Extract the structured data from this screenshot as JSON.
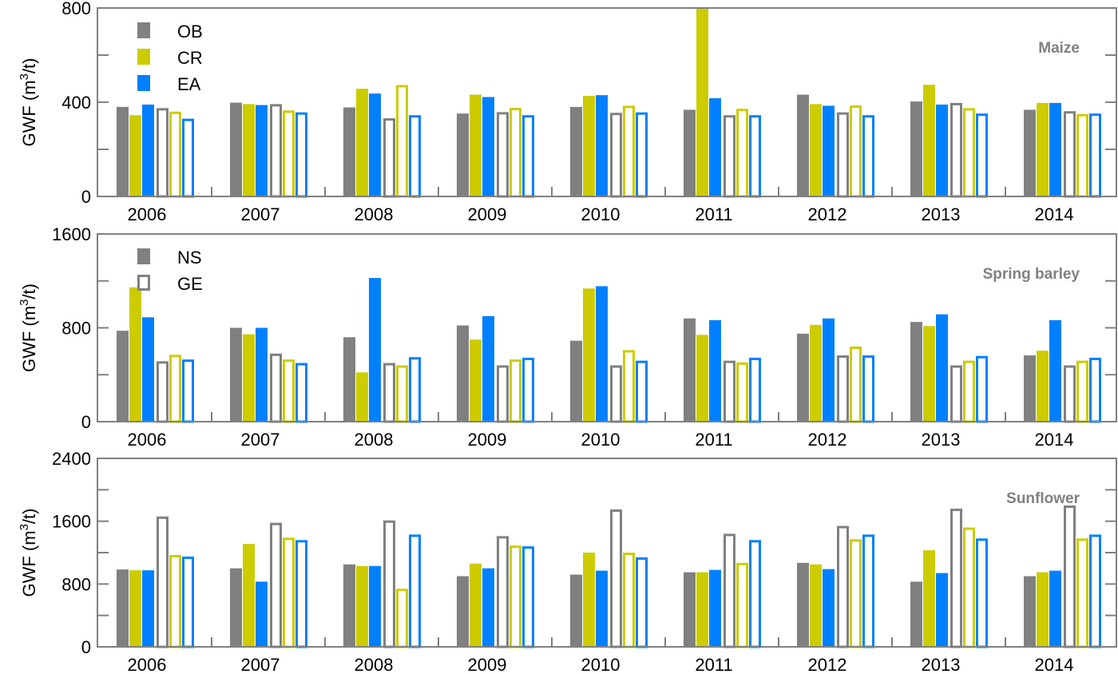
{
  "colors": {
    "OB": "#808080",
    "CR": "#cccc00",
    "EA": "#0080ff",
    "axis": "#808080"
  },
  "chart_data": [
    {
      "type": "bar",
      "title": "Maize",
      "ylabel_main": "GWF (m",
      "ylabel_sup": "3",
      "ylabel_end": "/t)",
      "ylim": [
        0,
        800
      ],
      "yticks": [
        "0",
        "400",
        "800"
      ],
      "categories": [
        "2006",
        "2007",
        "2008",
        "2009",
        "2010",
        "2011",
        "2012",
        "2013",
        "2014"
      ],
      "legend": [
        {
          "label": "OB",
          "style": "filled",
          "color": "OB"
        },
        {
          "label": "CR",
          "style": "filled",
          "color": "CR"
        },
        {
          "label": "EA",
          "style": "filled",
          "color": "EA"
        }
      ],
      "series": [
        {
          "name": "NS-OB",
          "style": "filled",
          "color": "OB",
          "values": [
            380,
            398,
            378,
            352,
            380,
            368,
            432,
            403,
            368
          ]
        },
        {
          "name": "NS-CR",
          "style": "filled",
          "color": "CR",
          "values": [
            345,
            392,
            457,
            432,
            427,
            800,
            392,
            474,
            397
          ]
        },
        {
          "name": "NS-EA",
          "style": "filled",
          "color": "EA",
          "values": [
            390,
            388,
            437,
            422,
            430,
            417,
            385,
            390,
            397
          ]
        },
        {
          "name": "GE-OB",
          "style": "hollow",
          "color": "OB",
          "values": [
            375,
            392,
            332,
            358,
            355,
            345,
            357,
            397,
            362
          ]
        },
        {
          "name": "GE-CR",
          "style": "hollow",
          "color": "CR",
          "values": [
            360,
            365,
            473,
            376,
            385,
            372,
            386,
            375,
            350
          ]
        },
        {
          "name": "GE-EA",
          "style": "hollow",
          "color": "EA",
          "values": [
            330,
            357,
            345,
            345,
            357,
            345,
            345,
            352,
            352
          ]
        }
      ]
    },
    {
      "type": "bar",
      "title": "Spring barley",
      "ylabel_main": "GWF (m",
      "ylabel_sup": "3",
      "ylabel_end": "/t)",
      "ylim": [
        0,
        1600
      ],
      "yticks": [
        "0",
        "800",
        "1600"
      ],
      "categories": [
        "2006",
        "2007",
        "2008",
        "2009",
        "2010",
        "2011",
        "2012",
        "2013",
        "2014"
      ],
      "legend": [
        {
          "label": "NS",
          "style": "filled",
          "color": "OB"
        },
        {
          "label": "GE",
          "style": "hollow",
          "color": "OB"
        }
      ],
      "series": [
        {
          "name": "NS-OB",
          "style": "filled",
          "color": "OB",
          "values": [
            775,
            800,
            720,
            820,
            690,
            880,
            750,
            850,
            565
          ]
        },
        {
          "name": "NS-CR",
          "style": "filled",
          "color": "CR",
          "values": [
            1145,
            745,
            420,
            700,
            1135,
            740,
            825,
            815,
            605
          ]
        },
        {
          "name": "NS-EA",
          "style": "filled",
          "color": "EA",
          "values": [
            890,
            800,
            1225,
            900,
            1155,
            865,
            880,
            915,
            865
          ]
        },
        {
          "name": "GE-OB",
          "style": "hollow",
          "color": "OB",
          "values": [
            515,
            580,
            500,
            480,
            480,
            520,
            565,
            480,
            480
          ]
        },
        {
          "name": "GE-CR",
          "style": "hollow",
          "color": "CR",
          "values": [
            570,
            530,
            480,
            530,
            610,
            505,
            640,
            520,
            520
          ]
        },
        {
          "name": "GE-EA",
          "style": "hollow",
          "color": "EA",
          "values": [
            530,
            500,
            550,
            545,
            520,
            545,
            565,
            560,
            545
          ]
        }
      ]
    },
    {
      "type": "bar",
      "title": "Sunflower",
      "ylabel_main": "GWF (m",
      "ylabel_sup": "3",
      "ylabel_end": "/t)",
      "ylim": [
        0,
        2400
      ],
      "yticks": [
        "0",
        "800",
        "1600",
        "2400"
      ],
      "categories": [
        "2006",
        "2007",
        "2008",
        "2009",
        "2010",
        "2011",
        "2012",
        "2013",
        "2014"
      ],
      "legend": [],
      "series": [
        {
          "name": "NS-OB",
          "style": "filled",
          "color": "OB",
          "values": [
            985,
            1000,
            1050,
            900,
            920,
            950,
            1070,
            830,
            900
          ]
        },
        {
          "name": "NS-CR",
          "style": "filled",
          "color": "CR",
          "values": [
            975,
            1310,
            1030,
            1060,
            1200,
            950,
            1050,
            1230,
            950
          ]
        },
        {
          "name": "NS-EA",
          "style": "filled",
          "color": "EA",
          "values": [
            975,
            830,
            1030,
            1000,
            970,
            980,
            990,
            940,
            970
          ]
        },
        {
          "name": "GE-OB",
          "style": "hollow",
          "color": "OB",
          "values": [
            1660,
            1580,
            1610,
            1410,
            1750,
            1440,
            1540,
            1760,
            1800
          ]
        },
        {
          "name": "GE-CR",
          "style": "hollow",
          "color": "CR",
          "values": [
            1170,
            1390,
            740,
            1290,
            1200,
            1070,
            1370,
            1520,
            1380
          ]
        },
        {
          "name": "GE-EA",
          "style": "hollow",
          "color": "EA",
          "values": [
            1150,
            1360,
            1430,
            1280,
            1140,
            1360,
            1430,
            1380,
            1430
          ]
        }
      ]
    }
  ]
}
